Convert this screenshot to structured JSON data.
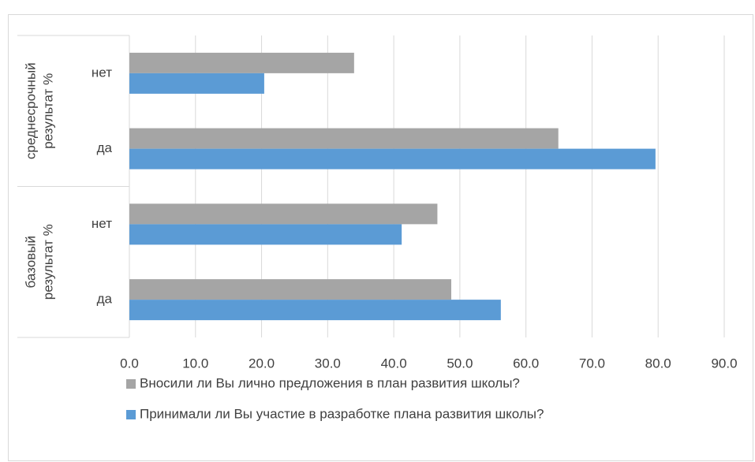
{
  "chart_data": {
    "type": "bar",
    "orientation": "horizontal",
    "group_labels": [
      [
        "среднесрочный",
        "результат %"
      ],
      [
        "базовый",
        "результат %"
      ]
    ],
    "categories": [
      "нет",
      "да",
      "нет",
      "да"
    ],
    "series": [
      {
        "name": "Вносили ли Вы лично предложения в план развития школы?",
        "color": "#a5a5a5",
        "values": [
          34.0,
          64.9,
          46.6,
          48.7
        ]
      },
      {
        "name": "Принимали ли Вы участие в разработке плана развития школы?",
        "color": "#5b9bd5",
        "values": [
          20.4,
          79.6,
          41.2,
          56.2
        ]
      }
    ],
    "xlim": [
      0,
      90
    ],
    "xticks": [
      {
        "value": 0,
        "label": "0.0"
      },
      {
        "value": 10,
        "label": "10.0"
      },
      {
        "value": 20,
        "label": "20.0"
      },
      {
        "value": 30,
        "label": "30.0"
      },
      {
        "value": 40,
        "label": "40.0"
      },
      {
        "value": 50,
        "label": "50.0"
      },
      {
        "value": 60,
        "label": "60.0"
      },
      {
        "value": 70,
        "label": "70.0"
      },
      {
        "value": 80,
        "label": "80.0"
      },
      {
        "value": 90,
        "label": "90.0"
      }
    ],
    "grid": true,
    "legend": "bottom"
  }
}
